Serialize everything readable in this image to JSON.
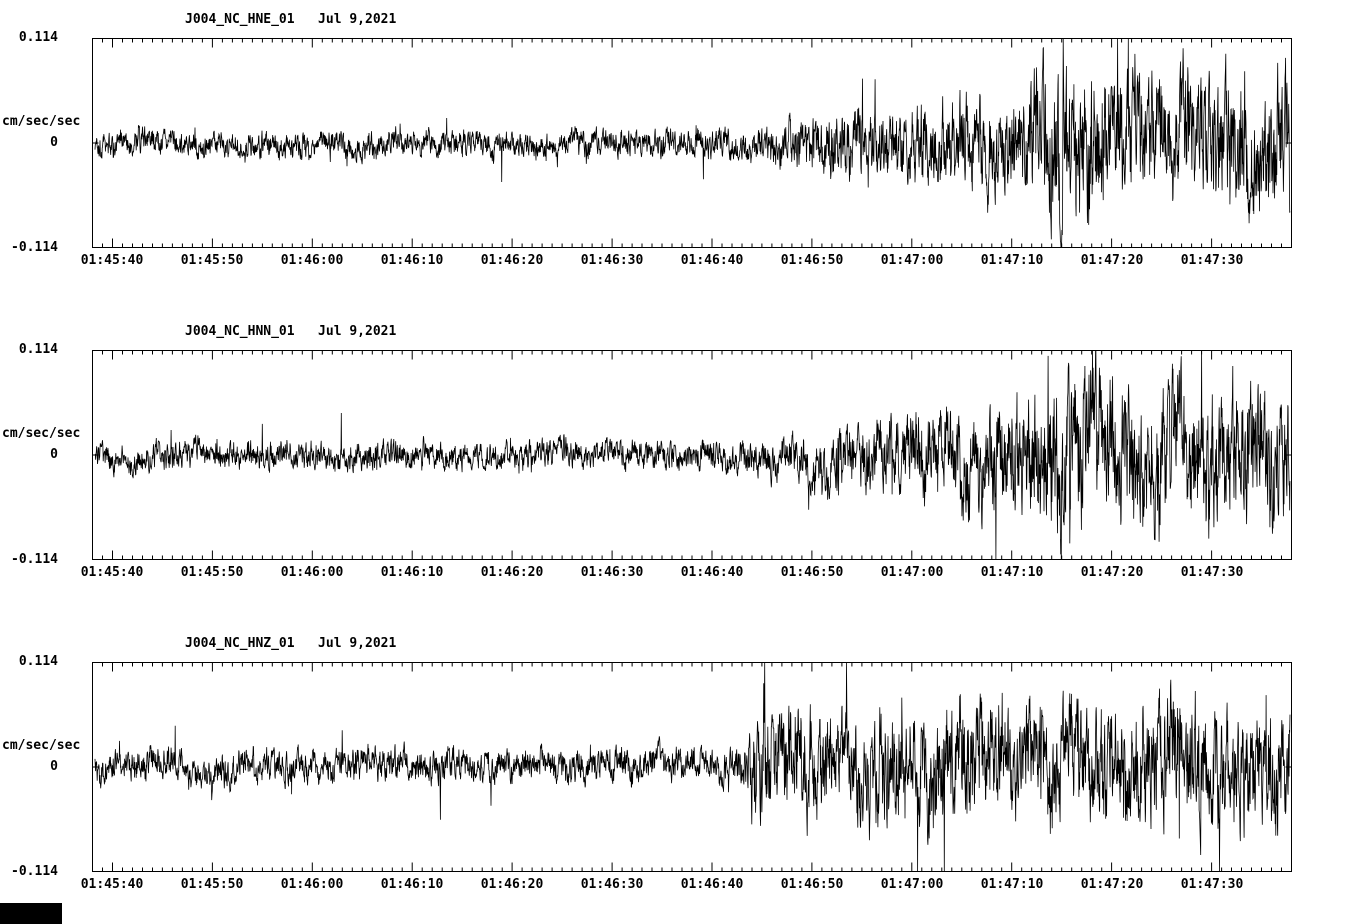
{
  "page": {
    "background": "#ffffff",
    "trace_color": "#000000"
  },
  "chart_data": [
    {
      "type": "line",
      "station_channel": "J004_NC_HNE_01",
      "date": "Jul 9,2021",
      "title": "J004_NC_HNE_01   Jul 9,2021",
      "ylabel": "cm/sec/sec",
      "ylim": [
        -0.114,
        0.114
      ],
      "ytick_labels": [
        "0.114",
        "0",
        "-0.114"
      ],
      "xtick_labels": [
        "01:45:40",
        "01:45:50",
        "01:46:00",
        "01:46:10",
        "01:46:20",
        "01:46:30",
        "01:46:40",
        "01:46:50",
        "01:47:00",
        "01:47:10",
        "01:47:20",
        "01:47:30"
      ],
      "xtick_seconds": [
        2,
        12,
        22,
        32,
        42,
        52,
        62,
        72,
        82,
        92,
        102,
        112
      ],
      "time_span_seconds": 120,
      "grid": false,
      "legend": false,
      "amplitude_envelope": [
        [
          0,
          0.016
        ],
        [
          0.4,
          0.016
        ],
        [
          0.5,
          0.017
        ],
        [
          0.55,
          0.02
        ],
        [
          0.6,
          0.034
        ],
        [
          0.65,
          0.042
        ],
        [
          0.7,
          0.05
        ],
        [
          0.75,
          0.058
        ],
        [
          0.772,
          0.06
        ],
        [
          0.785,
          0.09
        ],
        [
          0.82,
          0.092
        ],
        [
          0.86,
          0.082
        ],
        [
          0.9,
          0.072
        ],
        [
          0.94,
          0.078
        ],
        [
          0.97,
          0.068
        ],
        [
          1,
          0.082
        ]
      ],
      "seed": 1337
    },
    {
      "type": "line",
      "station_channel": "J004_NC_HNN_01",
      "date": "Jul 9,2021",
      "title": "J004_NC_HNN_01   Jul 9,2021",
      "ylabel": "cm/sec/sec",
      "ylim": [
        -0.114,
        0.114
      ],
      "ytick_labels": [
        "0.114",
        "0",
        "-0.114"
      ],
      "xtick_labels": [
        "01:45:40",
        "01:45:50",
        "01:46:00",
        "01:46:10",
        "01:46:20",
        "01:46:30",
        "01:46:40",
        "01:46:50",
        "01:47:00",
        "01:47:10",
        "01:47:20",
        "01:47:30"
      ],
      "xtick_seconds": [
        2,
        12,
        22,
        32,
        42,
        52,
        62,
        72,
        82,
        92,
        102,
        112
      ],
      "time_span_seconds": 120,
      "grid": false,
      "legend": false,
      "amplitude_envelope": [
        [
          0,
          0.017
        ],
        [
          0.45,
          0.017
        ],
        [
          0.52,
          0.018
        ],
        [
          0.56,
          0.022
        ],
        [
          0.62,
          0.036
        ],
        [
          0.68,
          0.048
        ],
        [
          0.74,
          0.058
        ],
        [
          0.77,
          0.062
        ],
        [
          0.785,
          0.092
        ],
        [
          0.83,
          0.09
        ],
        [
          0.88,
          0.08
        ],
        [
          0.92,
          0.086
        ],
        [
          0.96,
          0.078
        ],
        [
          1,
          0.088
        ]
      ],
      "seed": 4242
    },
    {
      "type": "line",
      "station_channel": "J004_NC_HNZ_01",
      "date": "Jul 9,2021",
      "title": "J004_NC_HNZ_01   Jul 9,2021",
      "ylabel": "cm/sec/sec",
      "ylim": [
        -0.114,
        0.114
      ],
      "ytick_labels": [
        "0.114",
        "0",
        "-0.114"
      ],
      "xtick_labels": [
        "01:45:40",
        "01:45:50",
        "01:46:00",
        "01:46:10",
        "01:46:20",
        "01:46:30",
        "01:46:40",
        "01:46:50",
        "01:47:00",
        "01:47:10",
        "01:47:20",
        "01:47:30"
      ],
      "xtick_seconds": [
        2,
        12,
        22,
        32,
        42,
        52,
        62,
        72,
        82,
        92,
        102,
        112
      ],
      "time_span_seconds": 120,
      "grid": false,
      "legend": false,
      "amplitude_envelope": [
        [
          0,
          0.02
        ],
        [
          0.5,
          0.021
        ],
        [
          0.54,
          0.022
        ],
        [
          0.552,
          0.065
        ],
        [
          0.58,
          0.07
        ],
        [
          0.62,
          0.062
        ],
        [
          0.66,
          0.07
        ],
        [
          0.7,
          0.064
        ],
        [
          0.74,
          0.072
        ],
        [
          0.78,
          0.062
        ],
        [
          0.82,
          0.07
        ],
        [
          0.86,
          0.064
        ],
        [
          0.9,
          0.075
        ],
        [
          0.94,
          0.066
        ],
        [
          0.98,
          0.07
        ],
        [
          1,
          0.072
        ]
      ],
      "seed": 9001
    }
  ]
}
